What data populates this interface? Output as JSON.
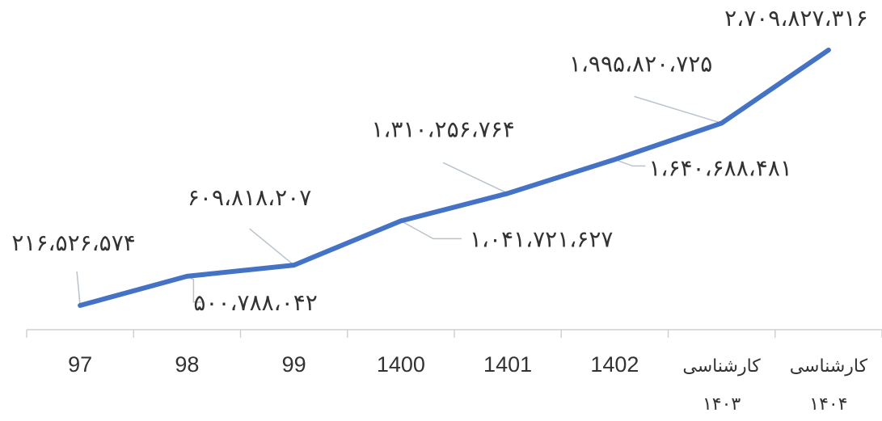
{
  "chart_data": {
    "type": "line",
    "categories": [
      [
        "97"
      ],
      [
        "98"
      ],
      [
        "99"
      ],
      [
        "1400"
      ],
      [
        "1401"
      ],
      [
        "1402"
      ],
      [
        "کارشناسی",
        "۱۴۰۳"
      ],
      [
        "کارشناسی",
        "۱۴۰۴"
      ]
    ],
    "series": [
      {
        "values": [
          216526574,
          500788042,
          609818207,
          1041721627,
          1310256764,
          1640688481,
          1995820725,
          2709827316
        ],
        "data_labels": [
          "۲۱۶،۵۲۶،۵۷۴",
          "۵۰۰،۷۸۸،۰۴۲",
          "۶۰۹،۸۱۸،۲۰۷",
          "۱،۰۴۱،۷۲۱،۶۲۷",
          "۱،۳۱۰،۲۵۶،۷۶۴",
          "۱،۶۴۰،۶۸۸،۴۸۱",
          "۱،۹۹۵،۸۲۰،۷۲۵",
          "۲،۷۰۹،۸۲۷،۳۱۶"
        ],
        "color": "#4472C4"
      }
    ],
    "title": "",
    "xlabel": "",
    "ylabel": "",
    "ylim": [
      0,
      3000000000
    ],
    "grid": false,
    "legend": "none"
  }
}
